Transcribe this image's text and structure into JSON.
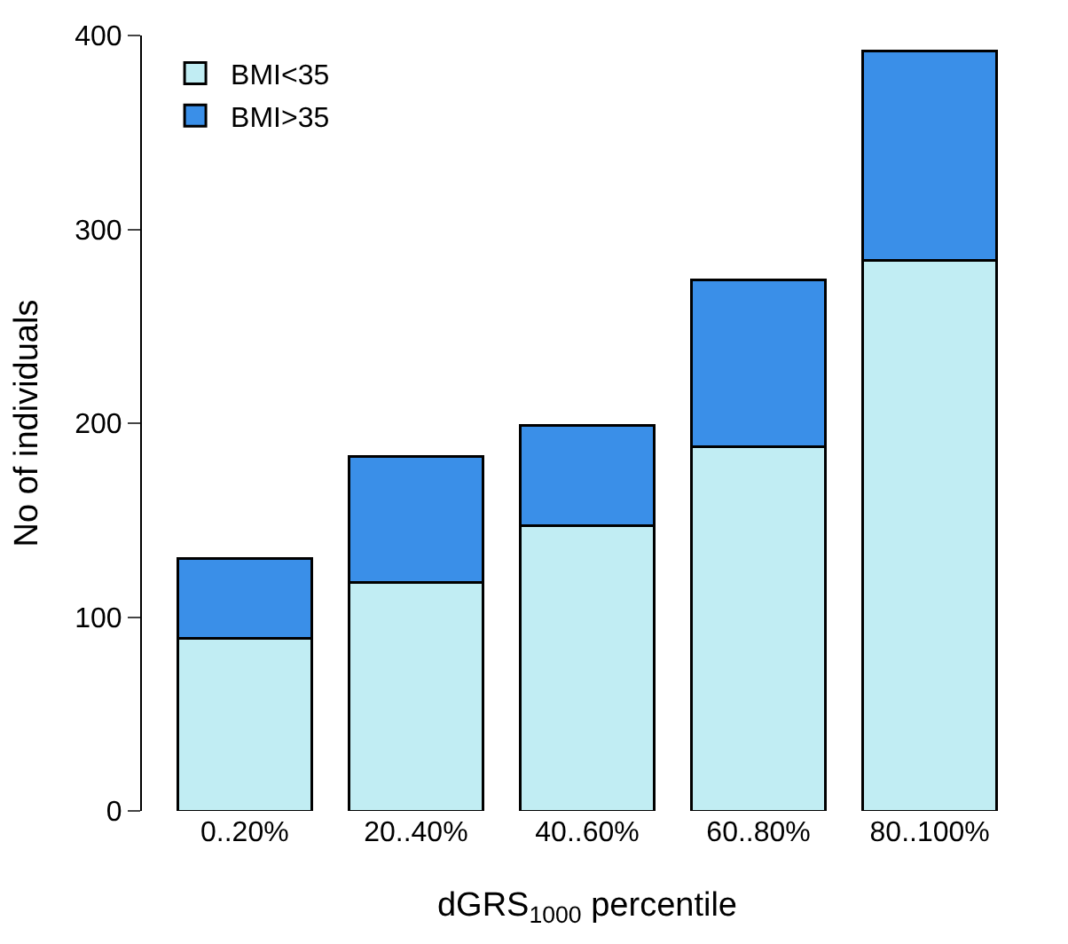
{
  "chart_data": {
    "type": "bar",
    "stacked": true,
    "xlabel": "dGRS$_{1000}$ percentile",
    "ylabel": "No of individuals",
    "categories": [
      "0..20%",
      "20..40%",
      "40..60%",
      "60..80%",
      "80..100%"
    ],
    "series": [
      {
        "name": "BMI<35",
        "color": "#c1edf3",
        "values": [
          89,
          118,
          147,
          188,
          284
        ]
      },
      {
        "name": "BMI>35",
        "color": "#3a8fe8",
        "values": [
          41,
          65,
          52,
          86,
          108
        ]
      }
    ],
    "ylim": [
      0,
      400
    ],
    "yticks": [
      0,
      100,
      200,
      300,
      400
    ],
    "legend": "top left"
  }
}
